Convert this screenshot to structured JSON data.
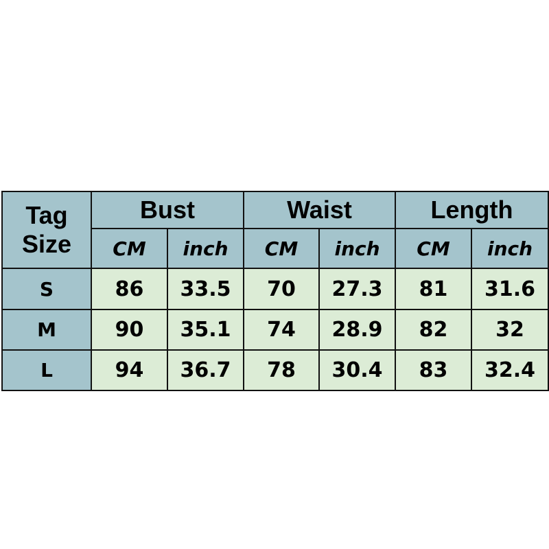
{
  "header": {
    "tag_size": [
      "Tag",
      "Size"
    ],
    "groups": [
      "Bust",
      "Waist",
      "Length"
    ],
    "units": [
      "CM",
      "inch",
      "CM",
      "inch",
      "CM",
      "inch"
    ]
  },
  "colors": {
    "header_bg": "#a4c4cc",
    "data_bg": "#dcecd6"
  },
  "rows": [
    {
      "size": "S",
      "values": [
        "86",
        "33.5",
        "70",
        "27.3",
        "81",
        "31.6"
      ]
    },
    {
      "size": "M",
      "values": [
        "90",
        "35.1",
        "74",
        "28.9",
        "82",
        "32"
      ]
    },
    {
      "size": "L",
      "values": [
        "94",
        "36.7",
        "78",
        "30.4",
        "83",
        "32.4"
      ]
    }
  ]
}
